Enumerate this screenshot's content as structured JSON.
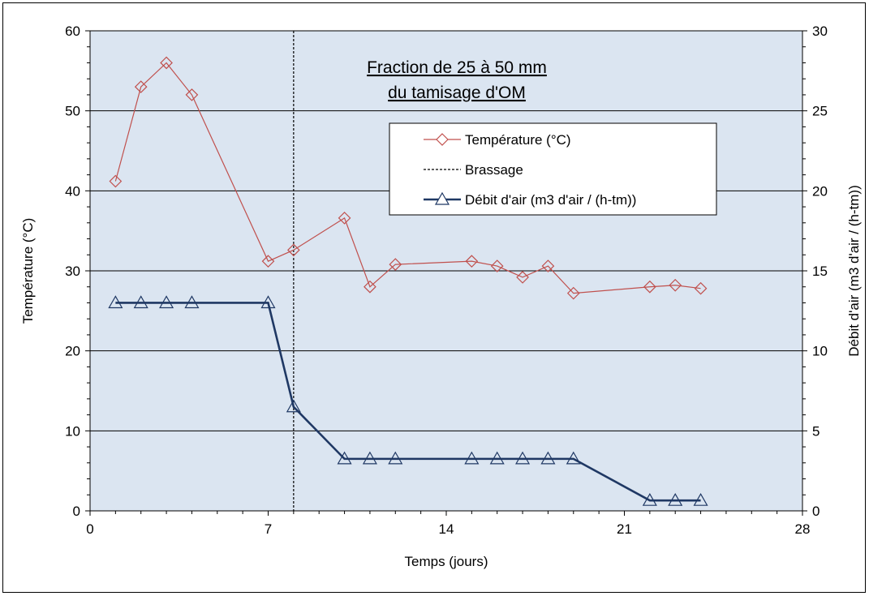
{
  "chart_data": {
    "type": "line",
    "title_lines": [
      "Fraction de 25 à 50 mm",
      "du tamisage d'OM"
    ],
    "xlabel": "Temps (jours)",
    "ylabel_left": "Température (°C)",
    "ylabel_right": "Débit d'air (m3 d'air / (h-tm))",
    "xlim": [
      0,
      28
    ],
    "ylim_left": [
      0,
      60
    ],
    "ylim_right": [
      0,
      30
    ],
    "x_ticks": [
      0,
      7,
      14,
      21,
      28
    ],
    "y_ticks_left": [
      0,
      10,
      20,
      30,
      40,
      50,
      60
    ],
    "y_ticks_right": [
      0,
      5,
      10,
      15,
      20,
      25,
      30
    ],
    "grid": "horizontal",
    "background": "#dbe5f1",
    "legend_placement": "upper-center-right",
    "series": [
      {
        "name": "Température (°C)",
        "axis": "left",
        "color": "#c0504d",
        "marker": "diamond",
        "x": [
          1,
          2,
          3,
          4,
          7,
          8,
          10,
          11,
          12,
          15,
          16,
          17,
          18,
          19,
          22,
          23,
          24
        ],
        "y": [
          41.2,
          53,
          56,
          52,
          31.2,
          32.6,
          36.6,
          28,
          30.8,
          31.2,
          30.6,
          29.2,
          30.6,
          27.2,
          28,
          28.2,
          27.8
        ]
      },
      {
        "name": "Brassage",
        "axis": "vline",
        "color": "#000000",
        "style": "dashed",
        "x": [
          8
        ]
      },
      {
        "name": "Débit d'air (m3 d'air / (h-tm))",
        "axis": "right",
        "color": "#1f3864",
        "marker": "triangle",
        "x": [
          1,
          2,
          3,
          4,
          7,
          8,
          10,
          11,
          12,
          15,
          16,
          17,
          18,
          19,
          22,
          23,
          24
        ],
        "y": [
          13,
          13,
          13,
          13,
          13,
          6.5,
          3.25,
          3.25,
          3.25,
          3.25,
          3.25,
          3.25,
          3.25,
          3.25,
          0.65,
          0.65,
          0.65
        ]
      }
    ]
  }
}
